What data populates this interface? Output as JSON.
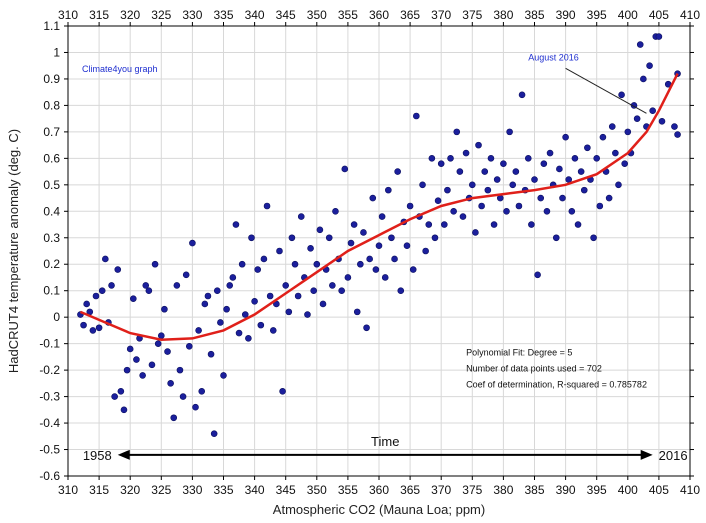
{
  "chart_data": {
    "type": "scatter",
    "xlabel": "Atmospheric CO2 (Mauna Loa; ppm)",
    "ylabel": "HadCRUT4 temperature anomaly (deg. C)",
    "xlim": [
      310,
      410
    ],
    "ylim": [
      -0.6,
      1.1
    ],
    "x_ticks": [
      "310",
      "315",
      "320",
      "325",
      "330",
      "335",
      "340",
      "345",
      "350",
      "355",
      "360",
      "365",
      "370",
      "375",
      "380",
      "385",
      "390",
      "395",
      "400",
      "405",
      "410"
    ],
    "y_ticks": [
      "-0.6",
      "-0.5",
      "-0.4",
      "-0.3",
      "-0.2",
      "-0.1",
      "0",
      "0.1",
      "0.2",
      "0.3",
      "0.4",
      "0.5",
      "0.6",
      "0.7",
      "0.8",
      "0.9",
      "1",
      "1.1"
    ],
    "grid": true,
    "point_color": "#1b1f9c",
    "fit_color": "#e0201a",
    "series": [
      {
        "kind": "scatter",
        "points": [
          [
            312.0,
            0.01
          ],
          [
            312.5,
            -0.03
          ],
          [
            313.0,
            0.05
          ],
          [
            313.5,
            0.02
          ],
          [
            314.0,
            -0.05
          ],
          [
            314.5,
            0.08
          ],
          [
            315.0,
            -0.04
          ],
          [
            315.5,
            0.1
          ],
          [
            316.0,
            0.22
          ],
          [
            316.5,
            -0.02
          ],
          [
            317.0,
            0.12
          ],
          [
            317.5,
            -0.3
          ],
          [
            318.0,
            0.18
          ],
          [
            318.5,
            -0.28
          ],
          [
            319.0,
            -0.35
          ],
          [
            319.5,
            -0.2
          ],
          [
            320.0,
            -0.12
          ],
          [
            320.5,
            0.07
          ],
          [
            321.0,
            -0.16
          ],
          [
            321.5,
            -0.08
          ],
          [
            322.0,
            -0.22
          ],
          [
            322.5,
            0.12
          ],
          [
            323.0,
            0.1
          ],
          [
            323.5,
            -0.18
          ],
          [
            324.0,
            0.2
          ],
          [
            324.5,
            -0.1
          ],
          [
            325.0,
            -0.07
          ],
          [
            325.5,
            0.03
          ],
          [
            326.0,
            -0.13
          ],
          [
            326.5,
            -0.25
          ],
          [
            327.0,
            -0.38
          ],
          [
            327.5,
            0.12
          ],
          [
            328.0,
            -0.2
          ],
          [
            328.5,
            -0.3
          ],
          [
            329.0,
            0.16
          ],
          [
            329.5,
            -0.11
          ],
          [
            330.0,
            0.28
          ],
          [
            330.5,
            -0.34
          ],
          [
            331.0,
            -0.05
          ],
          [
            331.5,
            -0.28
          ],
          [
            332.0,
            0.05
          ],
          [
            332.5,
            0.08
          ],
          [
            333.0,
            -0.14
          ],
          [
            333.5,
            -0.44
          ],
          [
            334.0,
            0.1
          ],
          [
            334.5,
            -0.02
          ],
          [
            335.0,
            -0.22
          ],
          [
            335.5,
            0.03
          ],
          [
            336.0,
            0.12
          ],
          [
            336.5,
            0.15
          ],
          [
            337.0,
            0.35
          ],
          [
            337.5,
            -0.06
          ],
          [
            338.0,
            0.2
          ],
          [
            338.5,
            0.01
          ],
          [
            339.0,
            -0.08
          ],
          [
            339.5,
            0.3
          ],
          [
            340.0,
            0.06
          ],
          [
            340.5,
            0.18
          ],
          [
            341.0,
            -0.03
          ],
          [
            341.5,
            0.22
          ],
          [
            342.0,
            0.42
          ],
          [
            342.5,
            0.08
          ],
          [
            343.0,
            -0.05
          ],
          [
            343.5,
            0.05
          ],
          [
            344.0,
            0.25
          ],
          [
            344.5,
            -0.28
          ],
          [
            345.0,
            0.12
          ],
          [
            345.5,
            0.02
          ],
          [
            346.0,
            0.3
          ],
          [
            346.5,
            0.2
          ],
          [
            347.0,
            0.08
          ],
          [
            347.5,
            0.38
          ],
          [
            348.0,
            0.15
          ],
          [
            348.5,
            0.01
          ],
          [
            349.0,
            0.26
          ],
          [
            349.5,
            0.1
          ],
          [
            350.0,
            0.2
          ],
          [
            350.5,
            0.33
          ],
          [
            351.0,
            0.05
          ],
          [
            351.5,
            0.18
          ],
          [
            352.0,
            0.3
          ],
          [
            352.5,
            0.12
          ],
          [
            353.0,
            0.4
          ],
          [
            353.5,
            0.22
          ],
          [
            354.0,
            0.1
          ],
          [
            354.5,
            0.56
          ],
          [
            355.0,
            0.15
          ],
          [
            355.5,
            0.28
          ],
          [
            356.0,
            0.35
          ],
          [
            356.5,
            0.02
          ],
          [
            357.0,
            0.2
          ],
          [
            357.5,
            0.32
          ],
          [
            358.0,
            -0.04
          ],
          [
            358.5,
            0.22
          ],
          [
            359.0,
            0.45
          ],
          [
            359.5,
            0.18
          ],
          [
            360.0,
            0.27
          ],
          [
            360.5,
            0.38
          ],
          [
            361.0,
            0.15
          ],
          [
            361.5,
            0.48
          ],
          [
            362.0,
            0.3
          ],
          [
            362.5,
            0.22
          ],
          [
            363.0,
            0.55
          ],
          [
            363.5,
            0.1
          ],
          [
            364.0,
            0.36
          ],
          [
            364.5,
            0.27
          ],
          [
            365.0,
            0.42
          ],
          [
            365.5,
            0.18
          ],
          [
            366.0,
            0.76
          ],
          [
            366.5,
            0.38
          ],
          [
            367.0,
            0.5
          ],
          [
            367.5,
            0.25
          ],
          [
            368.0,
            0.35
          ],
          [
            368.5,
            0.6
          ],
          [
            369.0,
            0.3
          ],
          [
            369.5,
            0.44
          ],
          [
            370.0,
            0.58
          ],
          [
            370.5,
            0.35
          ],
          [
            371.0,
            0.48
          ],
          [
            371.5,
            0.6
          ],
          [
            372.0,
            0.4
          ],
          [
            372.5,
            0.7
          ],
          [
            373.0,
            0.55
          ],
          [
            373.5,
            0.38
          ],
          [
            374.0,
            0.62
          ],
          [
            374.5,
            0.45
          ],
          [
            375.0,
            0.5
          ],
          [
            375.5,
            0.32
          ],
          [
            376.0,
            0.65
          ],
          [
            376.5,
            0.42
          ],
          [
            377.0,
            0.55
          ],
          [
            377.5,
            0.48
          ],
          [
            378.0,
            0.6
          ],
          [
            378.5,
            0.35
          ],
          [
            379.0,
            0.52
          ],
          [
            379.5,
            0.45
          ],
          [
            380.0,
            0.58
          ],
          [
            380.5,
            0.4
          ],
          [
            381.0,
            0.7
          ],
          [
            381.5,
            0.5
          ],
          [
            382.0,
            0.55
          ],
          [
            382.5,
            0.42
          ],
          [
            383.0,
            0.84
          ],
          [
            383.5,
            0.48
          ],
          [
            384.0,
            0.6
          ],
          [
            384.5,
            0.35
          ],
          [
            385.0,
            0.52
          ],
          [
            385.5,
            0.16
          ],
          [
            386.0,
            0.45
          ],
          [
            386.5,
            0.58
          ],
          [
            387.0,
            0.4
          ],
          [
            387.5,
            0.62
          ],
          [
            388.0,
            0.5
          ],
          [
            388.5,
            0.3
          ],
          [
            389.0,
            0.56
          ],
          [
            389.5,
            0.45
          ],
          [
            390.0,
            0.68
          ],
          [
            390.5,
            0.52
          ],
          [
            391.0,
            0.4
          ],
          [
            391.5,
            0.6
          ],
          [
            392.0,
            0.35
          ],
          [
            392.5,
            0.55
          ],
          [
            393.0,
            0.48
          ],
          [
            393.5,
            0.64
          ],
          [
            394.0,
            0.52
          ],
          [
            394.5,
            0.3
          ],
          [
            395.0,
            0.6
          ],
          [
            395.5,
            0.42
          ],
          [
            396.0,
            0.68
          ],
          [
            396.5,
            0.55
          ],
          [
            397.0,
            0.45
          ],
          [
            397.5,
            0.72
          ],
          [
            398.0,
            0.62
          ],
          [
            398.5,
            0.5
          ],
          [
            399.0,
            0.84
          ],
          [
            399.5,
            0.58
          ],
          [
            400.0,
            0.7
          ],
          [
            400.5,
            0.62
          ],
          [
            401.0,
            0.8
          ],
          [
            401.5,
            0.75
          ],
          [
            402.0,
            1.03
          ],
          [
            402.5,
            0.9
          ],
          [
            403.0,
            0.72
          ],
          [
            403.5,
            0.95
          ],
          [
            404.0,
            0.78
          ],
          [
            404.5,
            1.06
          ],
          [
            405.0,
            1.06
          ],
          [
            405.5,
            0.74
          ],
          [
            406.5,
            0.88
          ],
          [
            407.5,
            0.72
          ],
          [
            408.0,
            0.69
          ],
          [
            408.0,
            0.92
          ]
        ]
      },
      {
        "kind": "fit",
        "points": [
          [
            312,
            0.02
          ],
          [
            316,
            -0.02
          ],
          [
            320,
            -0.06
          ],
          [
            325,
            -0.085
          ],
          [
            330,
            -0.08
          ],
          [
            335,
            -0.05
          ],
          [
            340,
            0.01
          ],
          [
            345,
            0.09
          ],
          [
            350,
            0.17
          ],
          [
            355,
            0.25
          ],
          [
            360,
            0.31
          ],
          [
            365,
            0.37
          ],
          [
            370,
            0.42
          ],
          [
            375,
            0.45
          ],
          [
            380,
            0.465
          ],
          [
            385,
            0.48
          ],
          [
            390,
            0.5
          ],
          [
            395,
            0.54
          ],
          [
            400,
            0.62
          ],
          [
            403,
            0.7
          ],
          [
            405,
            0.78
          ],
          [
            408,
            0.92
          ]
        ]
      }
    ],
    "annotations": {
      "source": "Climate4you graph",
      "august": "August 2016",
      "august_point": [
        403,
        0.77
      ],
      "fit_line1": "Polynomial Fit:   Degree = 5",
      "fit_line2": "Number of data points used = 702",
      "fit_line3": "Coef of determination, R-squared = 0.785782",
      "time_label": "Time",
      "year_start": "1958",
      "year_end": "2016",
      "time_y": -0.52,
      "time_x_start": 318,
      "time_x_end": 404
    }
  }
}
